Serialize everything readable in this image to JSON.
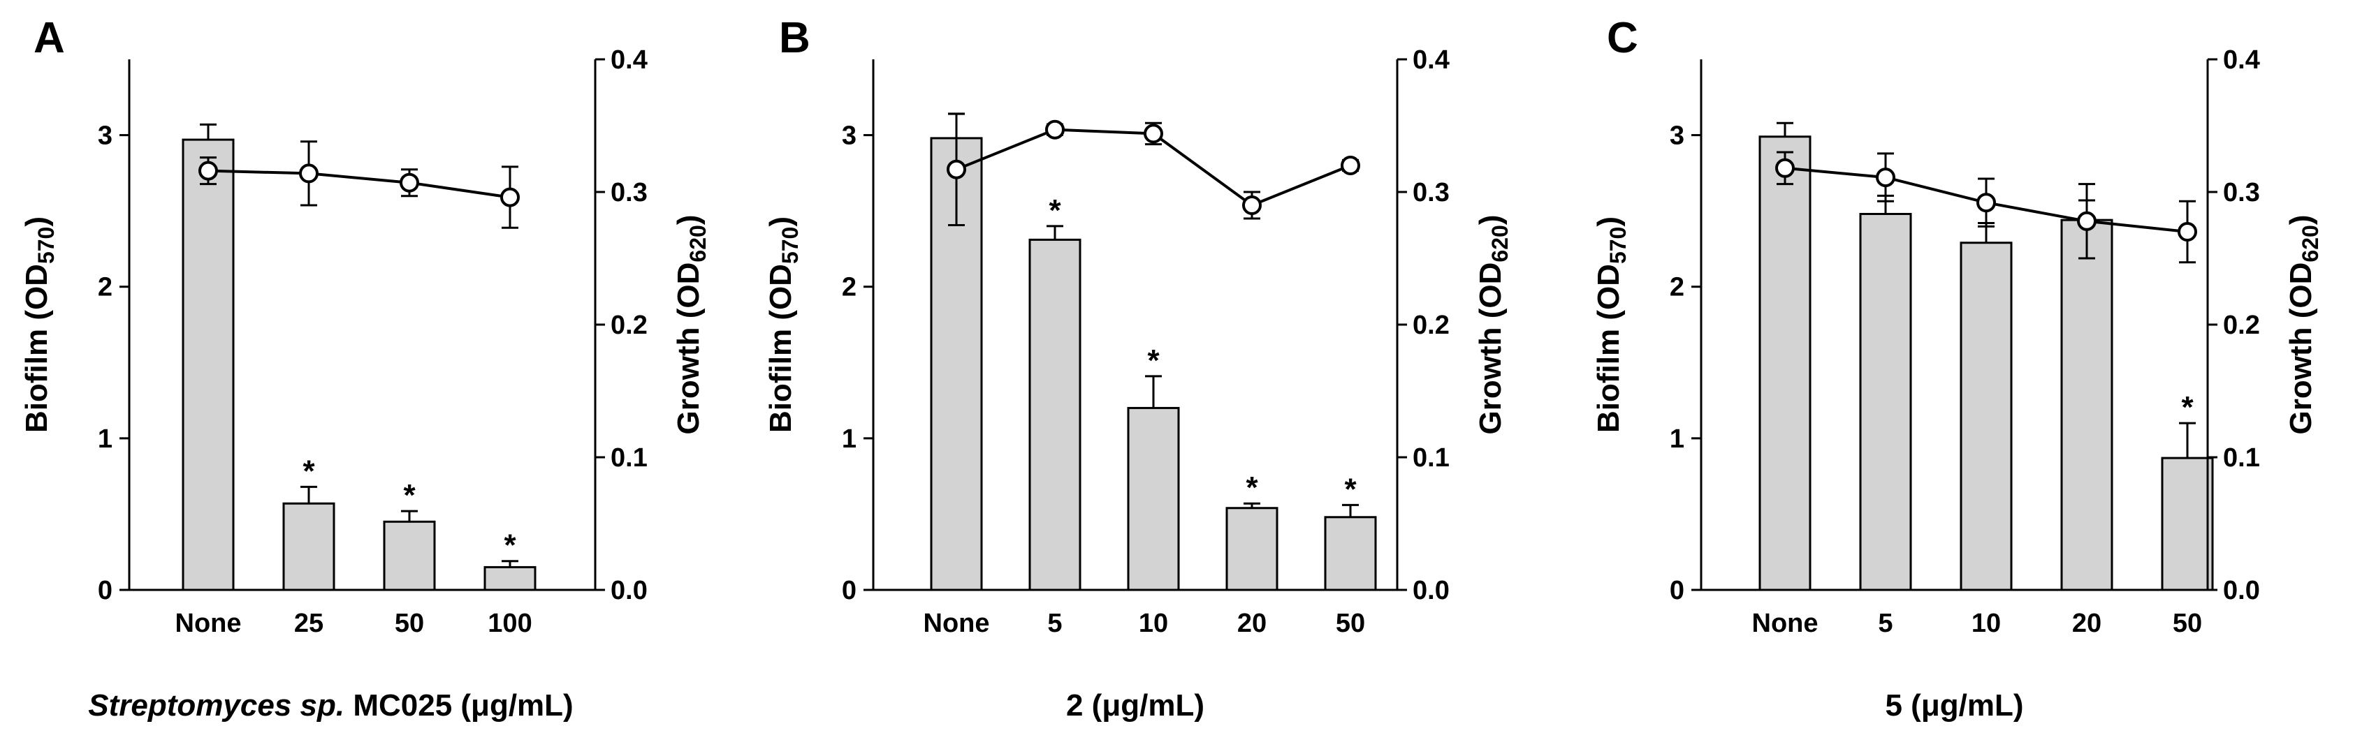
{
  "colors": {
    "bar_fill": "#d3d3d3",
    "stroke": "#000000",
    "marker_fill": "#ffffff",
    "background": "#ffffff"
  },
  "chart_data": [
    {
      "panel": "A",
      "type": "bar",
      "categories": [
        "None",
        "25",
        "50",
        "100"
      ],
      "xlabel_parts": [
        {
          "text": "Streptomyces sp.",
          "italic": true
        },
        {
          "text": " MC025 (μg/mL)",
          "italic": false
        }
      ],
      "ylabel_left": {
        "main": "Biofilm (OD",
        "sub": "570",
        "end": ")"
      },
      "ylabel_right": {
        "main": "Growth (OD",
        "sub": "620",
        "end": ")"
      },
      "ylim_left": [
        0,
        3.5
      ],
      "yticks_left": [
        "0",
        "1",
        "2",
        "3"
      ],
      "ylim_right": [
        0,
        0.4
      ],
      "yticks_right": [
        "0.0",
        "0.1",
        "0.2",
        "0.3",
        "0.4"
      ],
      "grid": false,
      "series": [
        {
          "type": "bar",
          "axis": "left",
          "values": [
            2.97,
            0.57,
            0.45,
            0.15
          ],
          "errors": [
            0.1,
            0.11,
            0.07,
            0.04
          ],
          "significance": [
            "",
            "*",
            "*",
            "*"
          ]
        },
        {
          "type": "line",
          "axis": "right",
          "values": [
            0.316,
            0.314,
            0.307,
            0.296
          ],
          "errors": [
            0.01,
            0.024,
            0.01,
            0.023
          ]
        }
      ]
    },
    {
      "panel": "B",
      "type": "bar",
      "categories": [
        "None",
        "5",
        "10",
        "20",
        "50"
      ],
      "xlabel_parts": [
        {
          "text": "2 (μg/mL)",
          "italic": false
        }
      ],
      "ylabel_left": {
        "main": "Biofilm (OD",
        "sub": "570",
        "end": ")"
      },
      "ylabel_right": {
        "main": "Growth (OD",
        "sub": "620",
        "end": ")"
      },
      "ylim_left": [
        0,
        3.5
      ],
      "yticks_left": [
        "0",
        "1",
        "2",
        "3"
      ],
      "ylim_right": [
        0,
        0.4
      ],
      "yticks_right": [
        "0.0",
        "0.1",
        "0.2",
        "0.3",
        "0.4"
      ],
      "grid": false,
      "series": [
        {
          "type": "bar",
          "axis": "left",
          "values": [
            2.98,
            2.31,
            1.2,
            0.54,
            0.48
          ],
          "errors": [
            0.16,
            0.09,
            0.21,
            0.03,
            0.08
          ],
          "significance": [
            "",
            "*",
            "*",
            "*",
            "*"
          ]
        },
        {
          "type": "line",
          "axis": "right",
          "values": [
            0.317,
            0.347,
            0.344,
            0.29,
            0.32
          ],
          "errors": [
            0.042,
            0.004,
            0.008,
            0.01,
            0.004
          ]
        }
      ]
    },
    {
      "panel": "C",
      "type": "bar",
      "categories": [
        "None",
        "5",
        "10",
        "20",
        "50"
      ],
      "xlabel_parts": [
        {
          "text": "5 (μg/mL)",
          "italic": false
        }
      ],
      "ylabel_left": {
        "main": "Biofilm (OD",
        "sub": "570",
        "end": ")"
      },
      "ylabel_right": {
        "main": "Growth (OD",
        "sub": "620",
        "end": ")"
      },
      "ylim_left": [
        0,
        3.5
      ],
      "yticks_left": [
        "0",
        "1",
        "2",
        "3"
      ],
      "ylim_right": [
        0,
        0.4
      ],
      "yticks_right": [
        "0.0",
        "0.1",
        "0.2",
        "0.3",
        "0.4"
      ],
      "grid": false,
      "series": [
        {
          "type": "bar",
          "axis": "left",
          "values": [
            2.99,
            2.48,
            2.29,
            2.44,
            0.87
          ],
          "errors": [
            0.09,
            0.12,
            0.13,
            0.13,
            0.23
          ],
          "significance": [
            "",
            "",
            "",
            "",
            "*"
          ]
        },
        {
          "type": "line",
          "axis": "right",
          "values": [
            0.318,
            0.311,
            0.292,
            0.278,
            0.27
          ],
          "errors": [
            0.012,
            0.018,
            0.018,
            0.028,
            0.023
          ]
        }
      ]
    }
  ]
}
